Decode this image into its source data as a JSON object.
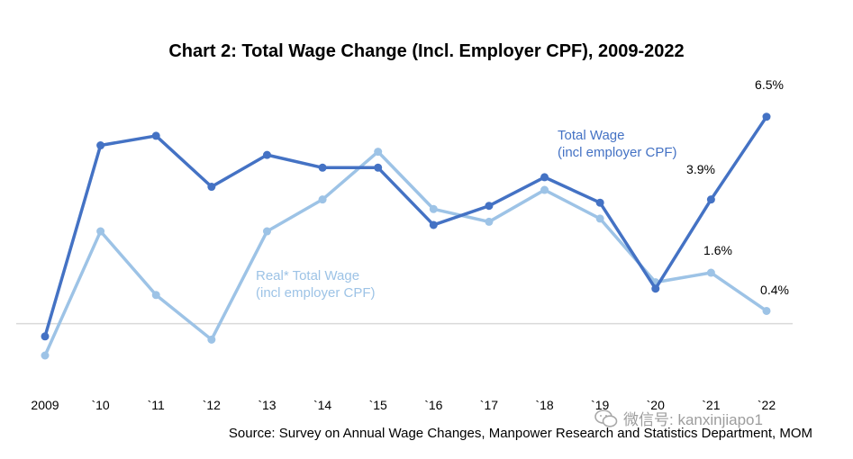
{
  "chart_data": {
    "type": "line",
    "title": "Chart 2: Total Wage Change (Incl. Employer CPF), 2009-2022",
    "categories": [
      "2009",
      "`10",
      "`11",
      "`12",
      "`13",
      "`14",
      "`15",
      "`16",
      "`17",
      "`18",
      "`19",
      "`20",
      "`21",
      "`22"
    ],
    "ylim": [
      -1.0,
      7.0
    ],
    "grid": false,
    "series": [
      {
        "name": "Total Wage",
        "label_lines": [
          "Total Wage",
          "(incl employer CPF)"
        ],
        "color": "#4472C4",
        "values": [
          -0.4,
          5.6,
          5.9,
          4.3,
          5.3,
          4.9,
          4.9,
          3.1,
          3.7,
          4.6,
          3.8,
          1.1,
          3.9,
          6.5
        ],
        "data_labels": [
          {
            "index": 12,
            "text": "3.9%"
          },
          {
            "index": 13,
            "text": "6.5%"
          }
        ]
      },
      {
        "name": "Real* Total Wage",
        "label_lines": [
          "Real* Total Wage",
          "(incl employer CPF)"
        ],
        "color": "#9DC3E6",
        "values": [
          -1.0,
          2.9,
          0.9,
          -0.5,
          2.9,
          3.9,
          5.4,
          3.6,
          3.2,
          4.2,
          3.3,
          1.3,
          1.6,
          0.4
        ],
        "data_labels": [
          {
            "index": 12,
            "text": "1.6%"
          },
          {
            "index": 13,
            "text": "0.4%"
          }
        ]
      }
    ]
  },
  "source": "Source: Survey on Annual Wage Changes, Manpower Research and Statistics Department, MOM",
  "watermark": "微信号: kanxinjiapo1"
}
